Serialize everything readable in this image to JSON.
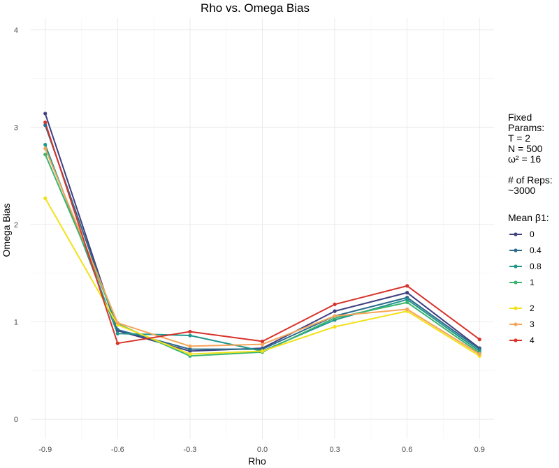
{
  "chart_data": {
    "type": "line",
    "title": "Rho vs. Omega Bias",
    "xlabel": "Rho",
    "ylabel": "Omega Bias",
    "x": [
      -0.9,
      -0.6,
      -0.3,
      0.0,
      0.3,
      0.6,
      0.9
    ],
    "x_tick_labels": [
      "-0.9",
      "-0.6",
      "-0.3",
      "0.0",
      "0.3",
      "0.6",
      "0.9"
    ],
    "y_tick_labels": [
      "0",
      "1",
      "2",
      "3",
      "4"
    ],
    "xlim": [
      -0.96,
      0.96
    ],
    "ylim": [
      -0.2,
      4.12
    ],
    "grid": true,
    "legend_position": "right",
    "legend_notes": [
      "Fixed",
      "Params:",
      "T = 2",
      "N = 500",
      "ω² = 16",
      "",
      "# of Reps:",
      "~3000"
    ],
    "legend_title": "Mean β1:",
    "series": [
      {
        "name": "0",
        "color": "#3f3f7f",
        "values": [
          3.14,
          0.91,
          0.7,
          0.73,
          1.11,
          1.3,
          0.73
        ]
      },
      {
        "name": "0.4",
        "color": "#2b6b8c",
        "values": [
          3.02,
          0.92,
          0.72,
          0.72,
          1.06,
          1.25,
          0.72
        ]
      },
      {
        "name": "0.8",
        "color": "#1f968b",
        "values": [
          2.82,
          0.88,
          0.86,
          0.7,
          1.02,
          1.23,
          0.7
        ]
      },
      {
        "name": "1",
        "color": "#3cb46e",
        "values": [
          2.72,
          0.98,
          0.65,
          0.69,
          1.04,
          1.2,
          0.68
        ]
      },
      {
        "name": "2",
        "color": "#f2e11a",
        "values": [
          2.27,
          0.97,
          0.67,
          0.7,
          0.95,
          1.11,
          0.65
        ]
      },
      {
        "name": "3",
        "color": "#f5a55a",
        "values": [
          2.78,
          0.99,
          0.75,
          0.77,
          1.06,
          1.13,
          0.67
        ]
      },
      {
        "name": "4",
        "color": "#d7332a",
        "values": [
          3.05,
          0.78,
          0.9,
          0.8,
          1.18,
          1.37,
          0.82
        ]
      }
    ]
  }
}
